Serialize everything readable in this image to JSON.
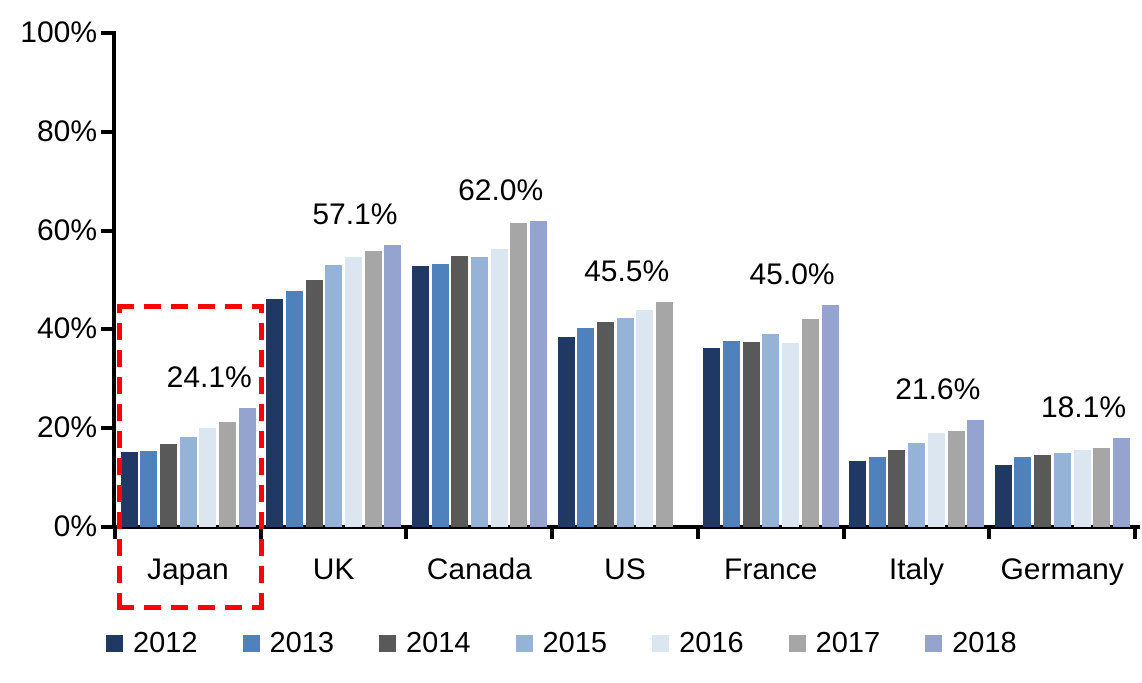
{
  "chart_data": {
    "type": "bar",
    "title": "",
    "xlabel": "",
    "ylabel": "",
    "categories": [
      "Japan",
      "UK",
      "Canada",
      "US",
      "France",
      "Italy",
      "Germany"
    ],
    "series": [
      {
        "name": "2012",
        "color": "#1F3864",
        "values": [
          15.1,
          46.2,
          52.8,
          38.4,
          36.3,
          13.4,
          12.5
        ]
      },
      {
        "name": "2013",
        "color": "#4F81BD",
        "values": [
          15.3,
          47.7,
          53.2,
          40.3,
          37.6,
          14.2,
          14.1
        ]
      },
      {
        "name": "2014",
        "color": "#595959",
        "values": [
          16.9,
          50.0,
          54.8,
          41.4,
          37.5,
          15.6,
          14.5
        ]
      },
      {
        "name": "2015",
        "color": "#95B3D7",
        "values": [
          18.2,
          53.0,
          54.6,
          42.3,
          39.1,
          17.1,
          14.9
        ]
      },
      {
        "name": "2016",
        "color": "#DCE6F1",
        "values": [
          20.0,
          54.7,
          56.2,
          44.0,
          37.2,
          19.1,
          15.6
        ]
      },
      {
        "name": "2017",
        "color": "#A6A6A6",
        "values": [
          21.3,
          55.8,
          61.5,
          45.5,
          42.2,
          19.5,
          15.9
        ]
      },
      {
        "name": "2018",
        "color": "#95A4CE",
        "values": [
          24.1,
          57.1,
          62.0,
          null,
          45.0,
          21.6,
          18.1
        ]
      }
    ],
    "data_labels": [
      {
        "category": "Japan",
        "text": "24.1%"
      },
      {
        "category": "UK",
        "text": "57.1%"
      },
      {
        "category": "Canada",
        "text": "62.0%"
      },
      {
        "category": "US",
        "text": "45.5%"
      },
      {
        "category": "France",
        "text": "45.0%"
      },
      {
        "category": "Italy",
        "text": "21.6%"
      },
      {
        "category": "Germany",
        "text": "18.1%"
      }
    ],
    "y_axis": {
      "min": 0,
      "max": 100,
      "tick_step": 20,
      "tick_labels": [
        "0%",
        "20%",
        "40%",
        "60%",
        "80%",
        "100%"
      ]
    },
    "grid": false,
    "legend_position": "bottom",
    "highlight": {
      "category": "Japan",
      "box_color": "#FF0000",
      "box_style": "dashed"
    }
  }
}
